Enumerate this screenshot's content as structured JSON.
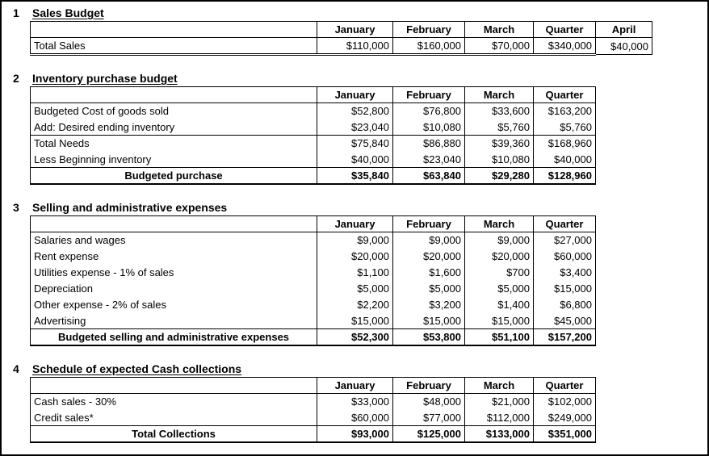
{
  "page": {
    "background_color": "#ffffff",
    "border_color": "#000000",
    "text_color": "#000000"
  },
  "sections": [
    {
      "number": "1",
      "title": "Sales Budget",
      "title_underlined": true,
      "columns": [
        "January",
        "February",
        "March",
        "Quarter",
        "April"
      ],
      "rows": [
        {
          "label": "Total Sales",
          "values": [
            "$110,000",
            "$160,000",
            "$70,000",
            "$340,000",
            "$40,000"
          ]
        }
      ],
      "bottom_border": "double_partial"
    },
    {
      "number": "2",
      "title": "Inventory purchase budget",
      "title_underlined": true,
      "columns": [
        "January",
        "February",
        "March",
        "Quarter"
      ],
      "rows": [
        {
          "label": "Budgeted Cost of goods sold",
          "values": [
            "$52,800",
            "$76,800",
            "$33,600",
            "$163,200"
          ]
        },
        {
          "label": "Add: Desired ending inventory",
          "values": [
            "$23,040",
            "$10,080",
            "$5,760",
            "$5,760"
          ]
        },
        {
          "label": "Total Needs",
          "values": [
            "$75,840",
            "$86,880",
            "$39,360",
            "$168,960"
          ],
          "rule_above": true
        },
        {
          "label": "Less Beginning inventory",
          "values": [
            "$40,000",
            "$23,040",
            "$10,080",
            "$40,000"
          ]
        },
        {
          "label": "Budgeted purchase",
          "values": [
            "$35,840",
            "$63,840",
            "$29,280",
            "$128,960"
          ],
          "bold": true,
          "label_center": true,
          "rule_above": true
        }
      ],
      "bottom_border": "thick"
    },
    {
      "number": "3",
      "title": "Selling and administrative expenses",
      "title_underlined": false,
      "columns": [
        "January",
        "February",
        "March",
        "Quarter"
      ],
      "rows": [
        {
          "label": "Salaries and wages",
          "values": [
            "$9,000",
            "$9,000",
            "$9,000",
            "$27,000"
          ]
        },
        {
          "label": "Rent expense",
          "values": [
            "$20,000",
            "$20,000",
            "$20,000",
            "$60,000"
          ]
        },
        {
          "label": "Utilities expense - 1% of sales",
          "values": [
            "$1,100",
            "$1,600",
            "$700",
            "$3,400"
          ]
        },
        {
          "label": "Depreciation",
          "values": [
            "$5,000",
            "$5,000",
            "$5,000",
            "$15,000"
          ]
        },
        {
          "label": "Other expense - 2% of sales",
          "values": [
            "$2,200",
            "$3,200",
            "$1,400",
            "$6,800"
          ]
        },
        {
          "label": "Advertising",
          "values": [
            "$15,000",
            "$15,000",
            "$15,000",
            "$45,000"
          ]
        },
        {
          "label": "Budgeted selling and administrative expenses",
          "values": [
            "$52,300",
            "$53,800",
            "$51,100",
            "$157,200"
          ],
          "bold": true,
          "label_center": true,
          "rule_above": true
        }
      ],
      "bottom_border": "thick"
    },
    {
      "number": "4",
      "title": "Schedule of expected Cash collections",
      "title_underlined": true,
      "columns": [
        "January",
        "February",
        "March",
        "Quarter"
      ],
      "rows": [
        {
          "label": "Cash sales - 30%",
          "values": [
            "$33,000",
            "$48,000",
            "$21,000",
            "$102,000"
          ]
        },
        {
          "label": "Credit sales*",
          "values": [
            "$60,000",
            "$77,000",
            "$112,000",
            "$249,000"
          ]
        },
        {
          "label": "Total Collections",
          "values": [
            "$93,000",
            "$125,000",
            "$133,000",
            "$351,000"
          ],
          "bold": true,
          "label_center": true,
          "rule_above": true
        }
      ],
      "bottom_border": "thick"
    }
  ]
}
